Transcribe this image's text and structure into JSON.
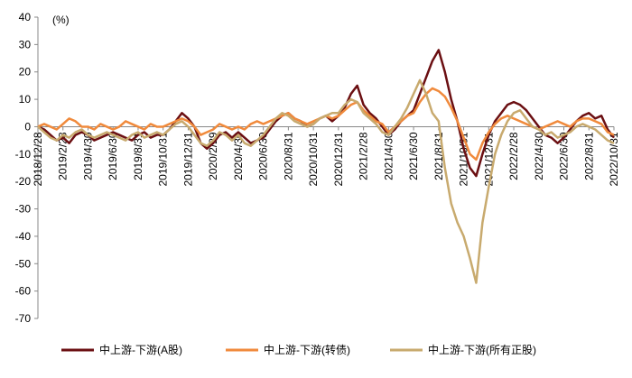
{
  "chart_data": {
    "type": "line",
    "y_label": "(%)",
    "categories": [
      "2018/12/28",
      null,
      null,
      null,
      "2019/2/28",
      null,
      null,
      null,
      "2019/4/30",
      null,
      null,
      null,
      "2019/6/30",
      null,
      null,
      null,
      "2019/8/31",
      null,
      null,
      null,
      "2019/10/31",
      null,
      null,
      null,
      "2019/12/31",
      null,
      null,
      null,
      "2020/2/29",
      null,
      null,
      null,
      "2020/4/30",
      null,
      null,
      null,
      "2020/6/30",
      null,
      null,
      null,
      "2020/8/31",
      null,
      null,
      null,
      "2020/10/31",
      null,
      null,
      null,
      "2020/12/31",
      null,
      null,
      null,
      "2021/2/28",
      null,
      null,
      null,
      "2021/4/30",
      null,
      null,
      null,
      "2021/6/30",
      null,
      null,
      null,
      "2021/8/31",
      null,
      null,
      null,
      "2021/10/31",
      null,
      null,
      null,
      "2021/12/31",
      null,
      null,
      null,
      "2022/2/28",
      null,
      null,
      null,
      "2022/4/30",
      null,
      null,
      null,
      "2022/6/30",
      null,
      null,
      null,
      "2022/8/31",
      null,
      null,
      null,
      "2022/10/31"
    ],
    "series": [
      {
        "name": "中上游-下游(A股)",
        "color": "#6b0f12",
        "values": [
          0,
          -1,
          -3,
          -5,
          -4,
          -6,
          -3,
          -2,
          -3,
          -5,
          -4,
          -3,
          -2,
          -3,
          -4,
          -5,
          -3,
          -2,
          -4,
          -3,
          -3,
          -1,
          2,
          5,
          3,
          0,
          -6,
          -8,
          -6,
          -3,
          -2,
          -4,
          -2,
          -4,
          -6,
          -5,
          -4,
          -1,
          2,
          4,
          5,
          3,
          2,
          0,
          1,
          3,
          4,
          2,
          4,
          7,
          12,
          15,
          8,
          5,
          3,
          0,
          -3,
          -1,
          2,
          4,
          6,
          12,
          18,
          24,
          28,
          20,
          10,
          2,
          -8,
          -15,
          -18,
          -10,
          -3,
          2,
          5,
          8,
          9,
          8,
          6,
          3,
          0,
          -3,
          -4,
          -6,
          -4,
          -1,
          2,
          4,
          5,
          3,
          4,
          -1,
          -4
        ]
      },
      {
        "name": "中上游-下游(转债)",
        "color": "#f08a3c",
        "values": [
          0,
          1,
          0,
          -1,
          1,
          3,
          2,
          0,
          0,
          -1,
          1,
          0,
          -1,
          0,
          2,
          1,
          0,
          -1,
          1,
          0,
          0,
          1,
          2,
          3,
          2,
          0,
          -3,
          -2,
          -1,
          1,
          0,
          -1,
          0,
          -1,
          1,
          2,
          1,
          2,
          3,
          4,
          5,
          3,
          2,
          1,
          2,
          3,
          4,
          3,
          4,
          6,
          8,
          9,
          6,
          4,
          2,
          1,
          -2,
          0,
          2,
          4,
          5,
          9,
          12,
          14,
          13,
          11,
          7,
          2,
          -4,
          -10,
          -12,
          -6,
          -2,
          1,
          3,
          4,
          3,
          2,
          1,
          0,
          -1,
          0,
          1,
          2,
          1,
          0,
          2,
          3,
          3,
          2,
          1,
          -2,
          -3
        ]
      },
      {
        "name": "中上游-下游(所有正股)",
        "color": "#c8aa6e",
        "values": [
          0,
          -2,
          -4,
          -5,
          -3,
          -4,
          -2,
          -1,
          -3,
          -4,
          -3,
          -2,
          -3,
          -4,
          -5,
          -3,
          -2,
          -4,
          -3,
          -2,
          -3,
          -1,
          1,
          2,
          0,
          -3,
          -6,
          -7,
          -5,
          -2,
          -3,
          -5,
          -3,
          -6,
          -7,
          -5,
          -3,
          0,
          3,
          5,
          4,
          2,
          1,
          0,
          1,
          3,
          4,
          5,
          5,
          8,
          10,
          9,
          5,
          3,
          1,
          -2,
          -3,
          0,
          3,
          7,
          12,
          17,
          12,
          5,
          2,
          -15,
          -28,
          -35,
          -40,
          -48,
          -57,
          -35,
          -22,
          -10,
          -3,
          2,
          5,
          6,
          3,
          0,
          -1,
          -3,
          -2,
          -4,
          -3,
          -2,
          0,
          1,
          0,
          -1,
          -3,
          -5,
          -6
        ]
      }
    ],
    "ylim": [
      -70,
      40
    ],
    "yticks": [
      -70,
      -60,
      -50,
      -40,
      -30,
      -20,
      -10,
      0,
      10,
      20,
      30,
      40
    ],
    "legend": "bottom"
  }
}
